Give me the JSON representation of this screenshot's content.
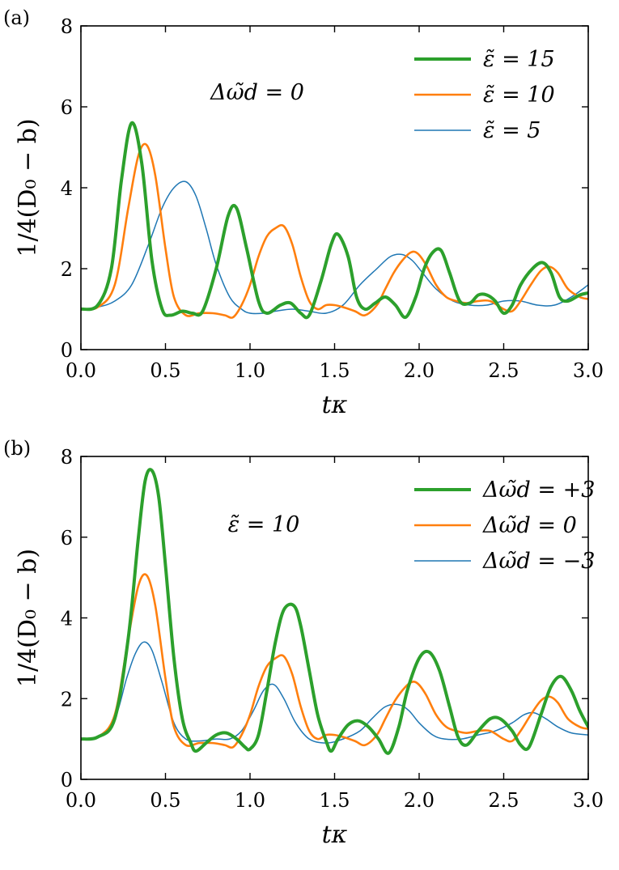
{
  "chart_data": [
    {
      "type": "line",
      "panel_label": "(a)",
      "annotation": "Δω̃d = 0",
      "xlabel": "tκ",
      "ylabel": "1/4(D₀ − b)",
      "xlim": [
        0,
        3
      ],
      "ylim": [
        0,
        8
      ],
      "xticks": [
        "0.0",
        "0.5",
        "1.0",
        "1.5",
        "2.0",
        "2.5",
        "3.0"
      ],
      "yticks": [
        "0",
        "2",
        "4",
        "6",
        "8"
      ],
      "legend_position": "top-right",
      "series": [
        {
          "name": "ε̃ = 15",
          "color": "#2ca02c",
          "weight": "thick",
          "x": [
            0,
            0.1,
            0.18,
            0.24,
            0.3,
            0.36,
            0.42,
            0.48,
            0.53,
            0.6,
            0.66,
            0.72,
            0.8,
            0.87,
            0.92,
            0.98,
            1.05,
            1.1,
            1.18,
            1.24,
            1.3,
            1.35,
            1.42,
            1.48,
            1.52,
            1.58,
            1.63,
            1.68,
            1.74,
            1.8,
            1.86,
            1.92,
            1.98,
            2.03,
            2.08,
            2.13,
            2.18,
            2.24,
            2.3,
            2.35,
            2.4,
            2.45,
            2.5,
            2.55,
            2.6,
            2.67,
            2.73,
            2.78,
            2.83,
            2.88,
            2.95,
            3.0
          ],
          "y": [
            1.0,
            1.1,
            2.0,
            4.2,
            5.6,
            4.6,
            2.2,
            1.0,
            0.85,
            0.95,
            0.9,
            0.95,
            2.0,
            3.3,
            3.5,
            2.5,
            1.2,
            0.9,
            1.1,
            1.15,
            0.9,
            0.85,
            1.7,
            2.6,
            2.85,
            2.3,
            1.3,
            1.0,
            1.15,
            1.3,
            1.1,
            0.8,
            1.3,
            2.0,
            2.4,
            2.45,
            1.9,
            1.2,
            1.15,
            1.35,
            1.35,
            1.2,
            0.9,
            1.1,
            1.6,
            2.0,
            2.15,
            1.9,
            1.3,
            1.2,
            1.35,
            1.4
          ]
        },
        {
          "name": "ε̃ = 10",
          "color": "#ff7f0e",
          "weight": "medium",
          "x": [
            0,
            0.1,
            0.2,
            0.28,
            0.34,
            0.39,
            0.44,
            0.5,
            0.55,
            0.62,
            0.7,
            0.78,
            0.85,
            0.9,
            0.95,
            1.0,
            1.05,
            1.1,
            1.15,
            1.2,
            1.25,
            1.3,
            1.35,
            1.4,
            1.45,
            1.5,
            1.55,
            1.62,
            1.68,
            1.75,
            1.8,
            1.85,
            1.9,
            1.95,
            1.99,
            2.04,
            2.1,
            2.16,
            2.22,
            2.28,
            2.35,
            2.42,
            2.5,
            2.55,
            2.6,
            2.66,
            2.72,
            2.77,
            2.82,
            2.88,
            2.95,
            3.0
          ],
          "y": [
            1.0,
            1.05,
            1.6,
            3.5,
            4.8,
            5.05,
            4.3,
            2.5,
            1.3,
            0.85,
            0.9,
            0.9,
            0.85,
            0.8,
            1.1,
            1.6,
            2.3,
            2.8,
            3.0,
            3.05,
            2.6,
            1.8,
            1.2,
            1.0,
            1.1,
            1.1,
            1.05,
            0.95,
            0.85,
            1.1,
            1.5,
            1.9,
            2.2,
            2.4,
            2.38,
            2.1,
            1.6,
            1.3,
            1.2,
            1.15,
            1.2,
            1.2,
            1.0,
            0.95,
            1.2,
            1.6,
            1.95,
            2.05,
            1.9,
            1.5,
            1.3,
            1.25
          ]
        },
        {
          "name": "ε̃ = 5",
          "color": "#1f77b4",
          "weight": "thin",
          "x": [
            0,
            0.1,
            0.2,
            0.3,
            0.4,
            0.48,
            0.55,
            0.62,
            0.68,
            0.74,
            0.8,
            0.88,
            0.95,
            1.0,
            1.08,
            1.15,
            1.25,
            1.35,
            1.45,
            1.55,
            1.65,
            1.75,
            1.83,
            1.9,
            1.96,
            2.02,
            2.1,
            2.2,
            2.3,
            2.4,
            2.5,
            2.6,
            2.7,
            2.8,
            2.9,
            3.0
          ],
          "y": [
            1.0,
            1.05,
            1.2,
            1.6,
            2.6,
            3.5,
            4.0,
            4.15,
            3.8,
            3.0,
            2.1,
            1.3,
            1.0,
            0.9,
            0.9,
            0.95,
            1.0,
            0.95,
            0.9,
            1.1,
            1.6,
            2.0,
            2.3,
            2.35,
            2.2,
            1.9,
            1.5,
            1.2,
            1.1,
            1.1,
            1.2,
            1.2,
            1.1,
            1.1,
            1.3,
            1.6
          ]
        }
      ]
    },
    {
      "type": "line",
      "panel_label": "(b)",
      "annotation": "ε̃ = 10",
      "xlabel": "tκ",
      "ylabel": "1/4(D₀ − b)",
      "xlim": [
        0,
        3
      ],
      "ylim": [
        0,
        8
      ],
      "xticks": [
        "0.0",
        "0.5",
        "1.0",
        "1.5",
        "2.0",
        "2.5",
        "3.0"
      ],
      "yticks": [
        "0",
        "2",
        "4",
        "6",
        "8"
      ],
      "legend_position": "top-right",
      "series": [
        {
          "name": "Δω̃d = +3",
          "color": "#2ca02c",
          "weight": "thick",
          "x": [
            0,
            0.1,
            0.2,
            0.28,
            0.34,
            0.38,
            0.42,
            0.46,
            0.5,
            0.55,
            0.6,
            0.65,
            0.68,
            0.74,
            0.8,
            0.86,
            0.92,
            0.97,
            1.0,
            1.05,
            1.1,
            1.15,
            1.2,
            1.26,
            1.3,
            1.35,
            1.4,
            1.45,
            1.48,
            1.52,
            1.58,
            1.64,
            1.7,
            1.76,
            1.82,
            1.88,
            1.93,
            2.0,
            2.06,
            2.12,
            2.18,
            2.23,
            2.28,
            2.35,
            2.42,
            2.48,
            2.55,
            2.6,
            2.65,
            2.72,
            2.78,
            2.84,
            2.9,
            2.95,
            3.0
          ],
          "y": [
            1.0,
            1.05,
            1.5,
            3.5,
            6.0,
            7.4,
            7.65,
            7.0,
            5.3,
            3.0,
            1.5,
            0.9,
            0.7,
            0.9,
            1.1,
            1.15,
            1.0,
            0.8,
            0.75,
            1.1,
            2.2,
            3.4,
            4.2,
            4.3,
            3.8,
            2.7,
            1.6,
            0.95,
            0.7,
            1.0,
            1.35,
            1.45,
            1.3,
            1.0,
            0.65,
            1.3,
            2.2,
            3.0,
            3.15,
            2.7,
            1.8,
            1.05,
            0.85,
            1.2,
            1.5,
            1.5,
            1.2,
            0.85,
            0.8,
            1.6,
            2.3,
            2.55,
            2.2,
            1.7,
            1.3
          ]
        },
        {
          "name": "Δω̃d = 0",
          "color": "#ff7f0e",
          "weight": "medium",
          "x": [
            0,
            0.1,
            0.2,
            0.28,
            0.34,
            0.39,
            0.44,
            0.5,
            0.55,
            0.62,
            0.7,
            0.78,
            0.85,
            0.9,
            0.95,
            1.0,
            1.05,
            1.1,
            1.15,
            1.2,
            1.25,
            1.3,
            1.35,
            1.4,
            1.45,
            1.5,
            1.55,
            1.62,
            1.68,
            1.75,
            1.8,
            1.85,
            1.9,
            1.95,
            1.99,
            2.04,
            2.1,
            2.16,
            2.22,
            2.28,
            2.35,
            2.42,
            2.5,
            2.55,
            2.6,
            2.66,
            2.72,
            2.77,
            2.82,
            2.88,
            2.95,
            3.0
          ],
          "y": [
            1.0,
            1.05,
            1.6,
            3.5,
            4.8,
            5.05,
            4.3,
            2.5,
            1.3,
            0.85,
            0.9,
            0.9,
            0.85,
            0.8,
            1.1,
            1.6,
            2.3,
            2.8,
            3.0,
            3.05,
            2.6,
            1.8,
            1.2,
            1.0,
            1.1,
            1.1,
            1.05,
            0.95,
            0.85,
            1.1,
            1.5,
            1.9,
            2.2,
            2.4,
            2.38,
            2.1,
            1.6,
            1.3,
            1.2,
            1.15,
            1.2,
            1.2,
            1.0,
            0.95,
            1.2,
            1.6,
            1.95,
            2.05,
            1.9,
            1.5,
            1.3,
            1.25
          ]
        },
        {
          "name": "Δω̃d = −3",
          "color": "#1f77b4",
          "weight": "thin",
          "x": [
            0,
            0.1,
            0.2,
            0.27,
            0.32,
            0.37,
            0.42,
            0.48,
            0.55,
            0.62,
            0.7,
            0.8,
            0.88,
            0.95,
            1.02,
            1.08,
            1.14,
            1.2,
            1.27,
            1.35,
            1.45,
            1.55,
            1.65,
            1.72,
            1.8,
            1.88,
            1.94,
            2.0,
            2.08,
            2.15,
            2.25,
            2.35,
            2.45,
            2.55,
            2.62,
            2.68,
            2.75,
            2.82,
            2.9,
            3.0
          ],
          "y": [
            1.0,
            1.05,
            1.5,
            2.5,
            3.1,
            3.4,
            3.2,
            2.4,
            1.4,
            1.0,
            0.95,
            1.0,
            1.0,
            1.2,
            1.7,
            2.2,
            2.35,
            2.0,
            1.4,
            1.0,
            0.9,
            1.0,
            1.2,
            1.5,
            1.8,
            1.85,
            1.7,
            1.4,
            1.1,
            1.0,
            1.0,
            1.1,
            1.2,
            1.4,
            1.6,
            1.65,
            1.5,
            1.3,
            1.15,
            1.1
          ]
        }
      ]
    }
  ]
}
